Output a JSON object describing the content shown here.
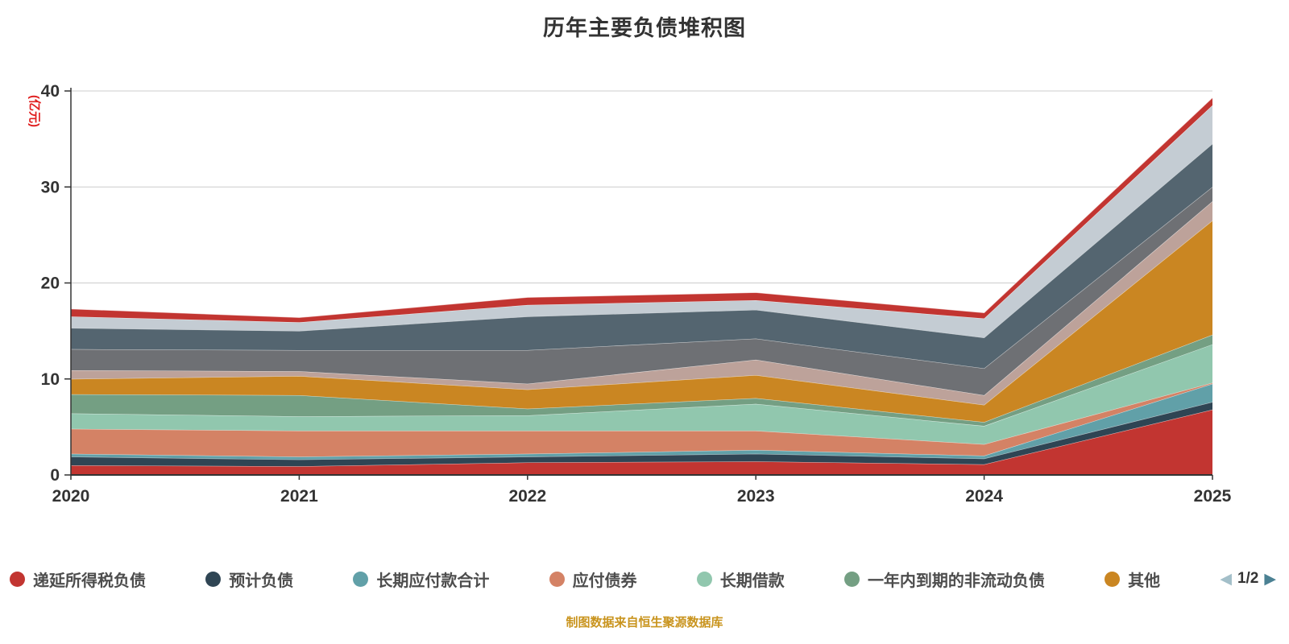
{
  "chart": {
    "title": "历年主要负债堆积图",
    "y_axis_unit": "(亿元)",
    "y_axis_unit_color": "#e01f1f",
    "source_note": "制图数据来自恒生聚源数据库",
    "source_note_color": "#c9941e"
  },
  "legend": {
    "pager": {
      "current": "1/2",
      "prev_icon": "◀",
      "next_icon": "▶",
      "prev_color": "#a3bfc9",
      "next_color": "#4b8193"
    }
  },
  "chart_data": {
    "type": "area",
    "stacked": true,
    "x": [
      "2020",
      "2021",
      "2022",
      "2023",
      "2024",
      "2025"
    ],
    "ylim": [
      0,
      40
    ],
    "y_ticks": [
      0,
      10,
      20,
      30,
      40
    ],
    "grid": true,
    "legend_position": "bottom",
    "series": [
      {
        "name": "递延所得税负债",
        "color": "#c23531",
        "in_legend": true,
        "values": [
          1.0,
          0.9,
          1.3,
          1.4,
          1.1,
          6.8
        ]
      },
      {
        "name": "预计负债",
        "color": "#2f4554",
        "in_legend": true,
        "values": [
          0.9,
          0.7,
          0.6,
          0.8,
          0.6,
          0.8
        ]
      },
      {
        "name": "长期应付款合计",
        "color": "#61a0a8",
        "in_legend": true,
        "values": [
          0.3,
          0.3,
          0.3,
          0.4,
          0.3,
          1.9
        ]
      },
      {
        "name": "应付债券",
        "color": "#d48265",
        "in_legend": true,
        "values": [
          2.6,
          2.7,
          2.4,
          2.0,
          1.2,
          0.1
        ]
      },
      {
        "name": "长期借款",
        "color": "#91c7ae",
        "in_legend": true,
        "values": [
          1.6,
          1.5,
          1.6,
          2.8,
          1.9,
          4.0
        ]
      },
      {
        "name": "一年内到期的非流动负债",
        "color": "#749f83",
        "in_legend": true,
        "values": [
          2.0,
          2.2,
          0.7,
          0.6,
          0.4,
          1.0
        ]
      },
      {
        "name": "其他",
        "color": "#ca8622",
        "in_legend": true,
        "values": [
          1.6,
          2.0,
          2.0,
          2.4,
          1.8,
          11.9
        ]
      },
      {
        "name": "",
        "color": "#bda29a",
        "in_legend": false,
        "values": [
          0.9,
          0.5,
          0.6,
          1.6,
          1.0,
          2.0
        ]
      },
      {
        "name": "",
        "color": "#6e7074",
        "in_legend": false,
        "values": [
          2.2,
          2.2,
          3.5,
          2.2,
          2.8,
          1.5
        ]
      },
      {
        "name": "",
        "color": "#546570",
        "in_legend": false,
        "values": [
          2.2,
          2.0,
          3.5,
          3.0,
          3.2,
          4.5
        ]
      },
      {
        "name": "",
        "color": "#c4ccd3",
        "in_legend": false,
        "values": [
          1.2,
          0.9,
          1.2,
          1.0,
          2.0,
          4.0
        ]
      },
      {
        "name": "",
        "color": "#c23531",
        "in_legend": false,
        "values": [
          0.8,
          0.5,
          0.8,
          0.8,
          0.6,
          0.8
        ]
      }
    ]
  }
}
